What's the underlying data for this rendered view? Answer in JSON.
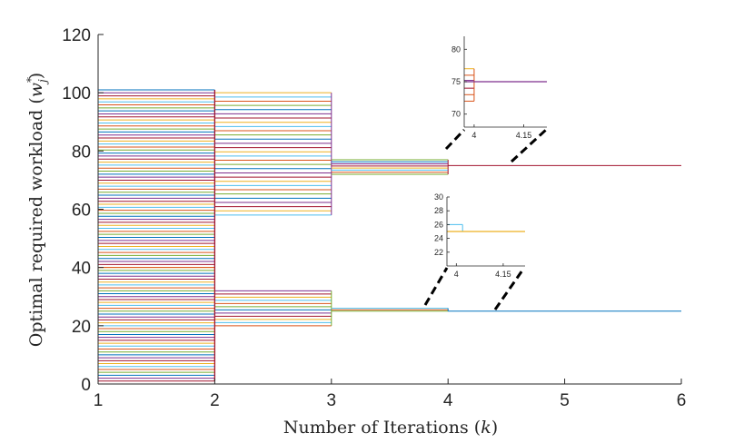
{
  "chart_data": {
    "type": "line",
    "subtype": "staircase-convergence",
    "xlabel": "Number of Iterations (k)",
    "ylabel": "Optimal required workload (w*j)",
    "xlim": [
      1,
      6
    ],
    "ylim": [
      0,
      120
    ],
    "xticks": [
      1,
      2,
      3,
      4,
      5,
      6
    ],
    "yticks": [
      0,
      20,
      40,
      60,
      80,
      100,
      120
    ],
    "palette": [
      "#0072BD",
      "#D95319",
      "#EDB120",
      "#7E2F8E",
      "#77AC30",
      "#4DBEEE",
      "#A2142F"
    ],
    "groups": [
      {
        "name": "upper-cluster",
        "stages": [
          {
            "x_start": 1,
            "x_end": 2,
            "y_min": 40,
            "y_max": 101,
            "count": 60
          },
          {
            "x_start": 2,
            "x_end": 3,
            "y_min": 58,
            "y_max": 100,
            "count": 30
          },
          {
            "x_start": 3,
            "x_end": 4,
            "y_min": 72,
            "y_max": 77,
            "count": 8
          },
          {
            "x_start": 4,
            "x_end": 6,
            "y_min": 75,
            "y_max": 75,
            "count": 1
          }
        ]
      },
      {
        "name": "lower-cluster",
        "stages": [
          {
            "x_start": 1,
            "x_end": 2,
            "y_min": 1,
            "y_max": 40,
            "count": 40
          },
          {
            "x_start": 2,
            "x_end": 3,
            "y_min": 20,
            "y_max": 32,
            "count": 12
          },
          {
            "x_start": 3,
            "x_end": 4,
            "y_min": 25,
            "y_max": 26,
            "count": 3
          },
          {
            "x_start": 4,
            "x_end": 6,
            "y_min": 25,
            "y_max": 25,
            "count": 1
          }
        ]
      }
    ],
    "insets": [
      {
        "name": "inset-upper",
        "ylim": [
          68,
          82
        ],
        "yticks": [
          70,
          75,
          80
        ],
        "xticks": [
          4,
          4.15
        ],
        "xlim": [
          3.97,
          4.22
        ],
        "stage_lines": [
          {
            "y": 77,
            "color": "#EDB120"
          },
          {
            "y": 76,
            "color": "#D95319"
          },
          {
            "y": 75.2,
            "color": "#7E2F8E"
          },
          {
            "y": 74,
            "color": "#A2142F"
          },
          {
            "y": 73,
            "color": "#D95319"
          },
          {
            "y": 72,
            "color": "#D95319"
          }
        ],
        "final_line": {
          "y": 75,
          "color": "#7E2F8E"
        }
      },
      {
        "name": "inset-lower",
        "ylim": [
          20,
          30
        ],
        "yticks": [
          22,
          24,
          26,
          28,
          30
        ],
        "xticks": [
          4,
          4.15
        ],
        "xlim": [
          3.97,
          4.22
        ],
        "stage_lines": [
          {
            "y": 26,
            "color": "#4DBEEE",
            "x_end": 4.02
          }
        ],
        "final_line": {
          "y": 25,
          "color": "#EDB120"
        }
      }
    ]
  }
}
